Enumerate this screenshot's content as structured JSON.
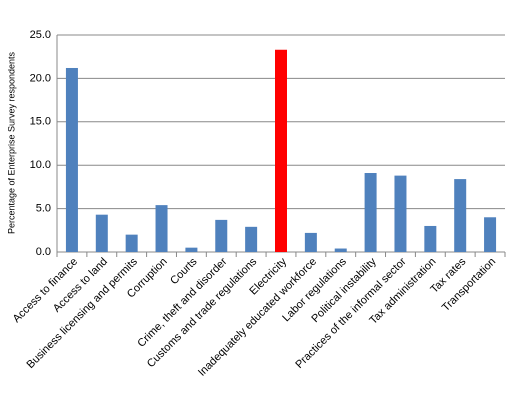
{
  "chart_data": {
    "type": "bar",
    "y_label": "Percentage of Enterprise Survey respondents",
    "categories": [
      "Access to finance",
      "Access to land",
      "Business licensing and permits",
      "Corruption",
      "Courts",
      "Crime, theft and disorder",
      "Customs and trade regulations",
      "Electricity",
      "Inadequately educated workforce",
      "Labor regulations",
      "Political instability",
      "Practices of the informal sector",
      "Tax administration",
      "Tax rates",
      "Transportation"
    ],
    "values": [
      21.2,
      4.3,
      2.0,
      5.4,
      0.5,
      3.7,
      2.9,
      23.3,
      2.2,
      0.4,
      9.1,
      8.8,
      3.0,
      8.4,
      4.0
    ],
    "colors": [
      "#4f81bd",
      "#4f81bd",
      "#4f81bd",
      "#4f81bd",
      "#4f81bd",
      "#4f81bd",
      "#4f81bd",
      "#ff0000",
      "#4f81bd",
      "#4f81bd",
      "#4f81bd",
      "#4f81bd",
      "#4f81bd",
      "#4f81bd",
      "#4f81bd"
    ],
    "ylim": [
      0,
      25
    ],
    "yticks": [
      {
        "value": 0,
        "label": "0.0"
      },
      {
        "value": 5,
        "label": "5.0"
      },
      {
        "value": 10,
        "label": "10.0"
      },
      {
        "value": 15,
        "label": "15.0"
      },
      {
        "value": 20,
        "label": "20.0"
      },
      {
        "value": 25,
        "label": "25.0"
      }
    ],
    "grid": true
  }
}
